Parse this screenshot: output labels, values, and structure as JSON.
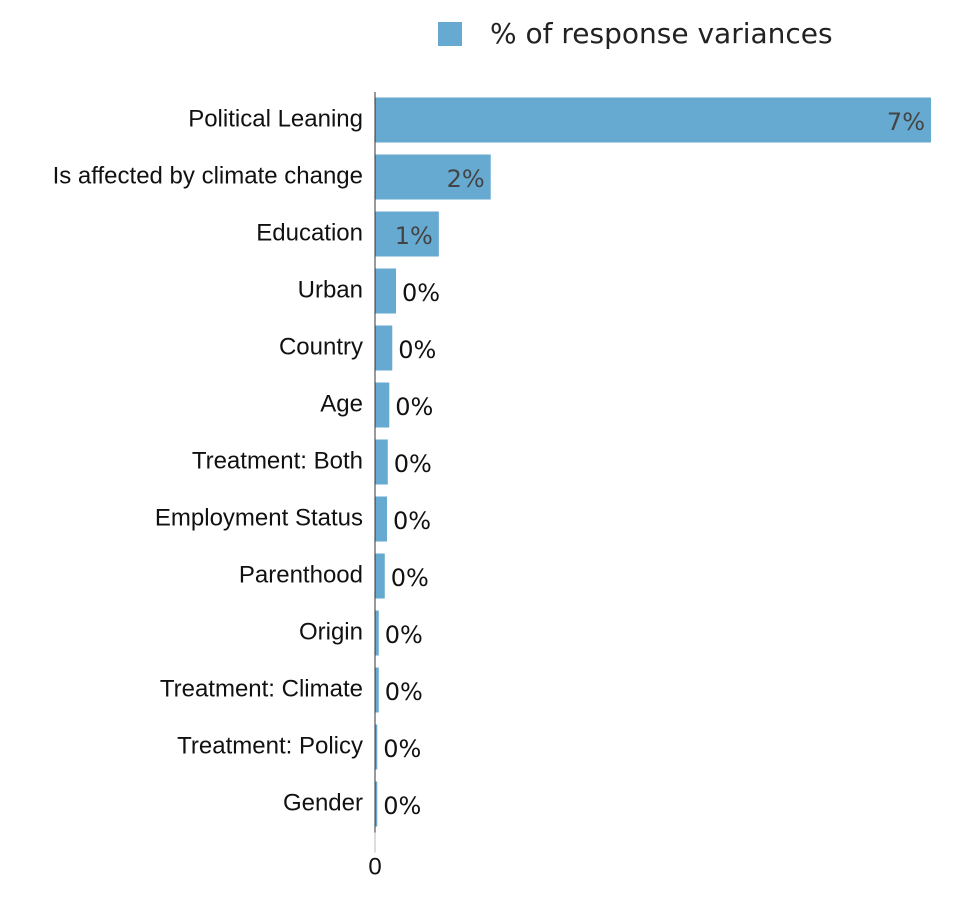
{
  "chart_data": {
    "type": "hbar",
    "series": [
      {
        "name": "% of response variances",
        "color": "#67aad1",
        "values": [
          7.4,
          1.54,
          0.85,
          0.28,
          0.23,
          0.19,
          0.17,
          0.16,
          0.13,
          0.05,
          0.05,
          0.03,
          0.03
        ],
        "value_labels": [
          "7%",
          "2%",
          "1%",
          "0%",
          "0%",
          "0%",
          "0%",
          "0%",
          "0%",
          "0%",
          "0%",
          "0%",
          "0%"
        ]
      }
    ],
    "categories": [
      "Political Leaning",
      "Is affected by climate change",
      "Education",
      "Urban",
      "Country",
      "Age",
      "Treatment: Both",
      "Employment Status",
      "Parenthood",
      "Origin",
      "Treatment: Climate",
      "Treatment: Policy",
      "Gender"
    ],
    "xlim": [
      0,
      7.4
    ],
    "xticks": [
      0
    ],
    "legend": "top"
  }
}
